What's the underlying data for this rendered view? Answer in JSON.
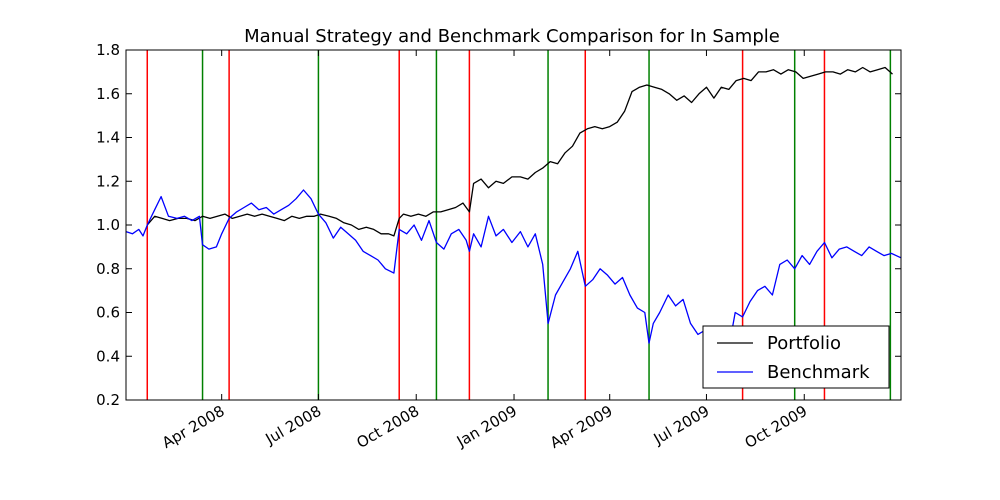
{
  "chart_data": {
    "type": "line",
    "title": "Manual Strategy and Benchmark Comparison for In Sample",
    "xlabel": "",
    "ylabel": "",
    "xlim": [
      "2008-01-02",
      "2009-12-31"
    ],
    "ylim": [
      0.2,
      1.8
    ],
    "yticks": [
      0.2,
      0.4,
      0.6,
      0.8,
      1.0,
      1.2,
      1.4,
      1.6,
      1.8
    ],
    "ytick_labels": [
      "0.2",
      "0.4",
      "0.6",
      "0.8",
      "1.0",
      "1.2",
      "1.4",
      "1.6",
      "1.8"
    ],
    "xticks": [
      "2008-04-01",
      "2008-07-01",
      "2008-10-01",
      "2009-01-01",
      "2009-04-01",
      "2009-07-01",
      "2009-10-01"
    ],
    "xtick_labels": [
      "Apr 2008",
      "Jul 2008",
      "Oct 2008",
      "Jan 2009",
      "Apr 2009",
      "Jul 2009",
      "Oct 2009"
    ],
    "grid": false,
    "legend_position": "bottom-right",
    "series": [
      {
        "name": "Portfolio",
        "color": "#000000",
        "points": [
          [
            "2008-01-22",
            1.0
          ],
          [
            "2008-01-29",
            1.04
          ],
          [
            "2008-02-05",
            1.03
          ],
          [
            "2008-02-12",
            1.02
          ],
          [
            "2008-02-20",
            1.03
          ],
          [
            "2008-02-28",
            1.03
          ],
          [
            "2008-03-07",
            1.02
          ],
          [
            "2008-03-14",
            1.04
          ],
          [
            "2008-03-21",
            1.03
          ],
          [
            "2008-03-28",
            1.04
          ],
          [
            "2008-04-04",
            1.05
          ],
          [
            "2008-04-11",
            1.03
          ],
          [
            "2008-04-18",
            1.04
          ],
          [
            "2008-04-25",
            1.05
          ],
          [
            "2008-05-02",
            1.04
          ],
          [
            "2008-05-09",
            1.05
          ],
          [
            "2008-05-16",
            1.04
          ],
          [
            "2008-05-23",
            1.03
          ],
          [
            "2008-05-30",
            1.02
          ],
          [
            "2008-06-06",
            1.04
          ],
          [
            "2008-06-13",
            1.03
          ],
          [
            "2008-06-20",
            1.04
          ],
          [
            "2008-06-27",
            1.04
          ],
          [
            "2008-07-03",
            1.05
          ],
          [
            "2008-07-11",
            1.04
          ],
          [
            "2008-07-18",
            1.03
          ],
          [
            "2008-07-25",
            1.01
          ],
          [
            "2008-08-01",
            1.0
          ],
          [
            "2008-08-08",
            0.98
          ],
          [
            "2008-08-15",
            0.99
          ],
          [
            "2008-08-22",
            0.98
          ],
          [
            "2008-08-29",
            0.96
          ],
          [
            "2008-09-05",
            0.96
          ],
          [
            "2008-09-10",
            0.95
          ],
          [
            "2008-09-15",
            1.03
          ],
          [
            "2008-09-19",
            1.05
          ],
          [
            "2008-09-26",
            1.04
          ],
          [
            "2008-10-03",
            1.05
          ],
          [
            "2008-10-10",
            1.04
          ],
          [
            "2008-10-17",
            1.06
          ],
          [
            "2008-10-24",
            1.06
          ],
          [
            "2008-10-31",
            1.07
          ],
          [
            "2008-11-07",
            1.08
          ],
          [
            "2008-11-14",
            1.1
          ],
          [
            "2008-11-20",
            1.06
          ],
          [
            "2008-11-24",
            1.19
          ],
          [
            "2008-12-01",
            1.21
          ],
          [
            "2008-12-08",
            1.17
          ],
          [
            "2008-12-15",
            1.2
          ],
          [
            "2008-12-22",
            1.19
          ],
          [
            "2008-12-30",
            1.22
          ],
          [
            "2009-01-07",
            1.22
          ],
          [
            "2009-01-14",
            1.21
          ],
          [
            "2009-01-21",
            1.24
          ],
          [
            "2009-01-28",
            1.26
          ],
          [
            "2009-02-04",
            1.29
          ],
          [
            "2009-02-11",
            1.28
          ],
          [
            "2009-02-18",
            1.33
          ],
          [
            "2009-02-25",
            1.36
          ],
          [
            "2009-03-04",
            1.42
          ],
          [
            "2009-03-11",
            1.44
          ],
          [
            "2009-03-18",
            1.45
          ],
          [
            "2009-03-25",
            1.44
          ],
          [
            "2009-04-01",
            1.45
          ],
          [
            "2009-04-08",
            1.47
          ],
          [
            "2009-04-15",
            1.52
          ],
          [
            "2009-04-22",
            1.61
          ],
          [
            "2009-04-29",
            1.63
          ],
          [
            "2009-05-06",
            1.64
          ],
          [
            "2009-05-13",
            1.63
          ],
          [
            "2009-05-20",
            1.62
          ],
          [
            "2009-05-27",
            1.6
          ],
          [
            "2009-06-03",
            1.57
          ],
          [
            "2009-06-10",
            1.59
          ],
          [
            "2009-06-17",
            1.56
          ],
          [
            "2009-06-24",
            1.6
          ],
          [
            "2009-07-01",
            1.63
          ],
          [
            "2009-07-08",
            1.58
          ],
          [
            "2009-07-15",
            1.63
          ],
          [
            "2009-07-22",
            1.62
          ],
          [
            "2009-07-29",
            1.66
          ],
          [
            "2009-08-05",
            1.67
          ],
          [
            "2009-08-12",
            1.66
          ],
          [
            "2009-08-19",
            1.7
          ],
          [
            "2009-08-26",
            1.7
          ],
          [
            "2009-09-02",
            1.71
          ],
          [
            "2009-09-09",
            1.69
          ],
          [
            "2009-09-16",
            1.71
          ],
          [
            "2009-09-23",
            1.7
          ],
          [
            "2009-09-30",
            1.67
          ],
          [
            "2009-10-07",
            1.68
          ],
          [
            "2009-10-14",
            1.69
          ],
          [
            "2009-10-21",
            1.7
          ],
          [
            "2009-10-28",
            1.7
          ],
          [
            "2009-11-04",
            1.69
          ],
          [
            "2009-11-11",
            1.71
          ],
          [
            "2009-11-18",
            1.7
          ],
          [
            "2009-11-25",
            1.72
          ],
          [
            "2009-12-02",
            1.7
          ],
          [
            "2009-12-09",
            1.71
          ],
          [
            "2009-12-16",
            1.72
          ],
          [
            "2009-12-23",
            1.69
          ]
        ]
      },
      {
        "name": "Benchmark",
        "color": "#0000ff",
        "points": [
          [
            "2008-01-02",
            0.97
          ],
          [
            "2008-01-08",
            0.96
          ],
          [
            "2008-01-14",
            0.98
          ],
          [
            "2008-01-18",
            0.95
          ],
          [
            "2008-01-22",
            1.0
          ],
          [
            "2008-01-29",
            1.07
          ],
          [
            "2008-02-04",
            1.13
          ],
          [
            "2008-02-11",
            1.04
          ],
          [
            "2008-02-19",
            1.03
          ],
          [
            "2008-02-26",
            1.04
          ],
          [
            "2008-03-04",
            1.02
          ],
          [
            "2008-03-11",
            1.04
          ],
          [
            "2008-03-14",
            0.91
          ],
          [
            "2008-03-20",
            0.89
          ],
          [
            "2008-03-27",
            0.9
          ],
          [
            "2008-04-01",
            0.96
          ],
          [
            "2008-04-08",
            1.03
          ],
          [
            "2008-04-15",
            1.06
          ],
          [
            "2008-04-22",
            1.08
          ],
          [
            "2008-04-29",
            1.1
          ],
          [
            "2008-05-06",
            1.07
          ],
          [
            "2008-05-13",
            1.08
          ],
          [
            "2008-05-20",
            1.05
          ],
          [
            "2008-05-27",
            1.07
          ],
          [
            "2008-06-03",
            1.09
          ],
          [
            "2008-06-10",
            1.12
          ],
          [
            "2008-06-17",
            1.16
          ],
          [
            "2008-06-24",
            1.12
          ],
          [
            "2008-07-01",
            1.05
          ],
          [
            "2008-07-08",
            1.01
          ],
          [
            "2008-07-15",
            0.94
          ],
          [
            "2008-07-22",
            0.99
          ],
          [
            "2008-07-29",
            0.96
          ],
          [
            "2008-08-05",
            0.93
          ],
          [
            "2008-08-12",
            0.88
          ],
          [
            "2008-08-19",
            0.86
          ],
          [
            "2008-08-26",
            0.84
          ],
          [
            "2008-09-02",
            0.8
          ],
          [
            "2008-09-10",
            0.78
          ],
          [
            "2008-09-15",
            0.98
          ],
          [
            "2008-09-22",
            0.96
          ],
          [
            "2008-09-29",
            1.0
          ],
          [
            "2008-10-06",
            0.93
          ],
          [
            "2008-10-13",
            1.02
          ],
          [
            "2008-10-20",
            0.92
          ],
          [
            "2008-10-27",
            0.89
          ],
          [
            "2008-11-03",
            0.96
          ],
          [
            "2008-11-10",
            0.98
          ],
          [
            "2008-11-17",
            0.93
          ],
          [
            "2008-11-20",
            0.88
          ],
          [
            "2008-11-24",
            0.96
          ],
          [
            "2008-12-01",
            0.9
          ],
          [
            "2008-12-08",
            1.04
          ],
          [
            "2008-12-15",
            0.95
          ],
          [
            "2008-12-22",
            0.98
          ],
          [
            "2008-12-30",
            0.92
          ],
          [
            "2009-01-07",
            0.97
          ],
          [
            "2009-01-14",
            0.9
          ],
          [
            "2009-01-21",
            0.96
          ],
          [
            "2009-01-28",
            0.82
          ],
          [
            "2009-02-02",
            0.55
          ],
          [
            "2009-02-09",
            0.68
          ],
          [
            "2009-02-16",
            0.74
          ],
          [
            "2009-02-23",
            0.8
          ],
          [
            "2009-03-02",
            0.88
          ],
          [
            "2009-03-09",
            0.72
          ],
          [
            "2009-03-16",
            0.75
          ],
          [
            "2009-03-23",
            0.8
          ],
          [
            "2009-03-30",
            0.77
          ],
          [
            "2009-04-06",
            0.73
          ],
          [
            "2009-04-13",
            0.76
          ],
          [
            "2009-04-20",
            0.68
          ],
          [
            "2009-04-27",
            0.62
          ],
          [
            "2009-05-04",
            0.6
          ],
          [
            "2009-05-08",
            0.46
          ],
          [
            "2009-05-12",
            0.55
          ],
          [
            "2009-05-18",
            0.6
          ],
          [
            "2009-05-26",
            0.68
          ],
          [
            "2009-06-02",
            0.63
          ],
          [
            "2009-06-09",
            0.66
          ],
          [
            "2009-06-16",
            0.55
          ],
          [
            "2009-06-23",
            0.5
          ],
          [
            "2009-06-30",
            0.52
          ],
          [
            "2009-07-07",
            0.47
          ],
          [
            "2009-07-14",
            0.42
          ],
          [
            "2009-07-21",
            0.41
          ],
          [
            "2009-07-28",
            0.6
          ],
          [
            "2009-08-04",
            0.58
          ],
          [
            "2009-08-11",
            0.65
          ],
          [
            "2009-08-18",
            0.7
          ],
          [
            "2009-08-25",
            0.72
          ],
          [
            "2009-09-01",
            0.68
          ],
          [
            "2009-09-08",
            0.82
          ],
          [
            "2009-09-15",
            0.84
          ],
          [
            "2009-09-22",
            0.8
          ],
          [
            "2009-09-29",
            0.86
          ],
          [
            "2009-10-06",
            0.82
          ],
          [
            "2009-10-13",
            0.88
          ],
          [
            "2009-10-20",
            0.92
          ],
          [
            "2009-10-27",
            0.85
          ],
          [
            "2009-11-03",
            0.89
          ],
          [
            "2009-11-10",
            0.9
          ],
          [
            "2009-11-17",
            0.88
          ],
          [
            "2009-11-24",
            0.86
          ],
          [
            "2009-12-01",
            0.9
          ],
          [
            "2009-12-08",
            0.88
          ],
          [
            "2009-12-15",
            0.86
          ],
          [
            "2009-12-22",
            0.87
          ],
          [
            "2009-12-31",
            0.85
          ]
        ]
      }
    ],
    "vlines": [
      {
        "date": "2008-01-22",
        "color": "red"
      },
      {
        "date": "2008-03-14",
        "color": "green"
      },
      {
        "date": "2008-04-08",
        "color": "red"
      },
      {
        "date": "2008-07-01",
        "color": "green"
      },
      {
        "date": "2008-09-15",
        "color": "red"
      },
      {
        "date": "2008-10-20",
        "color": "green"
      },
      {
        "date": "2008-11-20",
        "color": "red"
      },
      {
        "date": "2009-02-02",
        "color": "green"
      },
      {
        "date": "2009-03-09",
        "color": "red"
      },
      {
        "date": "2009-05-08",
        "color": "green"
      },
      {
        "date": "2009-08-04",
        "color": "red"
      },
      {
        "date": "2009-09-22",
        "color": "green"
      },
      {
        "date": "2009-10-20",
        "color": "red"
      },
      {
        "date": "2009-12-21",
        "color": "green"
      }
    ],
    "vline_colors": {
      "red": "#ff0000",
      "green": "#008000"
    }
  }
}
